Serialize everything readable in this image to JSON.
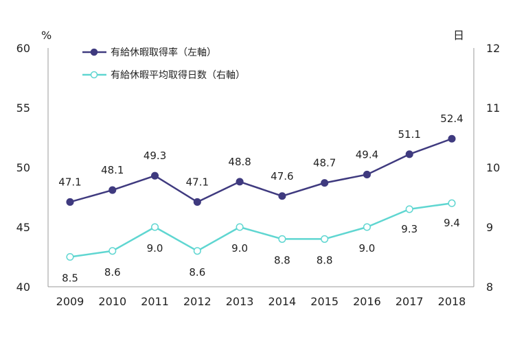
{
  "chart_data": {
    "type": "line",
    "categories": [
      "2009",
      "2010",
      "2011",
      "2012",
      "2013",
      "2014",
      "2015",
      "2016",
      "2017",
      "2018"
    ],
    "left_axis": {
      "unit": "%",
      "ylim": [
        40,
        60
      ],
      "ticks": [
        "40",
        "45",
        "50",
        "55",
        "60"
      ]
    },
    "right_axis": {
      "unit": "日",
      "ylim": [
        8,
        12
      ],
      "ticks": [
        "8",
        "9",
        "10",
        "11",
        "12"
      ]
    },
    "series": [
      {
        "name": "有給休暇取得率（左軸）",
        "axis": "left",
        "color": "#3f3a7f",
        "marker": "filled",
        "values": [
          47.1,
          48.1,
          49.3,
          47.1,
          48.8,
          47.6,
          48.7,
          49.4,
          51.1,
          52.4
        ],
        "labels": [
          "47.1",
          "48.1",
          "49.3",
          "47.1",
          "48.8",
          "47.6",
          "48.7",
          "49.4",
          "51.1",
          "52.4"
        ]
      },
      {
        "name": "有給休暇平均取得日数（右軸）",
        "axis": "right",
        "color": "#5fd6d1",
        "marker": "hollow",
        "values": [
          8.5,
          8.6,
          9.0,
          8.6,
          9.0,
          8.8,
          8.8,
          9.0,
          9.3,
          9.4
        ],
        "labels": [
          "8.5",
          "8.6",
          "9.0",
          "8.6",
          "9.0",
          "8.8",
          "8.8",
          "9.0",
          "9.3",
          "9.4"
        ]
      }
    ],
    "legend": "top-left",
    "grid": false
  }
}
